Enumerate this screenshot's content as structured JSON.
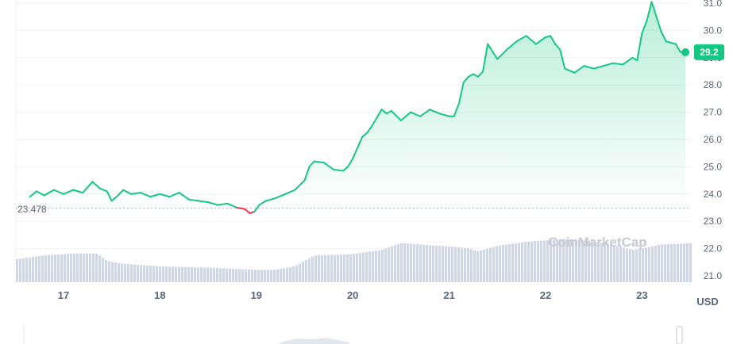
{
  "chart_data": {
    "type": "area",
    "y_axis": {
      "ticks": [
        "31.0",
        "30.0",
        "29.0",
        "28.0",
        "27.0",
        "26.0",
        "25.0",
        "24.0",
        "23.0",
        "22.0",
        "21.0"
      ],
      "ylim": [
        21.0,
        31.0
      ]
    },
    "x_axis": {
      "ticks": [
        "17",
        "18",
        "19",
        "20",
        "21",
        "22",
        "23"
      ],
      "xlim": [
        16.5,
        23.5
      ]
    },
    "unit_label": "USD",
    "reference": {
      "value": 23.478,
      "label": "23.478"
    },
    "current": {
      "value": 29.2,
      "label": "29.2"
    },
    "watermark": "CoinMarketCap",
    "colors": {
      "up": "#16c784",
      "down": "#ea3943",
      "volume": "#cfd6e4",
      "text": "#58667e"
    },
    "price": {
      "x": [
        16.65,
        16.72,
        16.8,
        16.9,
        17.0,
        17.1,
        17.2,
        17.3,
        17.38,
        17.45,
        17.5,
        17.55,
        17.62,
        17.7,
        17.8,
        17.9,
        18.0,
        18.1,
        18.2,
        18.3,
        18.4,
        18.5,
        18.6,
        18.7,
        18.8,
        18.88,
        18.93,
        18.98,
        19.03,
        19.1,
        19.2,
        19.3,
        19.4,
        19.5,
        19.55,
        19.6,
        19.7,
        19.8,
        19.9,
        19.95,
        20.0,
        20.05,
        20.1,
        20.15,
        20.2,
        20.25,
        20.3,
        20.35,
        20.4,
        20.5,
        20.6,
        20.7,
        20.8,
        20.9,
        21.0,
        21.05,
        21.1,
        21.15,
        21.2,
        21.25,
        21.3,
        21.35,
        21.4,
        21.5,
        21.6,
        21.7,
        21.8,
        21.9,
        22.0,
        22.05,
        22.1,
        22.15,
        22.2,
        22.3,
        22.4,
        22.5,
        22.6,
        22.7,
        22.8,
        22.9,
        22.95,
        23.0,
        23.05,
        23.1,
        23.15,
        23.2,
        23.25,
        23.3,
        23.35,
        23.4,
        23.45
      ],
      "y": [
        23.9,
        24.1,
        23.95,
        24.15,
        24.0,
        24.15,
        24.05,
        24.45,
        24.2,
        24.1,
        23.75,
        23.9,
        24.15,
        24.0,
        24.05,
        23.9,
        24.0,
        23.9,
        24.05,
        23.8,
        23.75,
        23.7,
        23.6,
        23.65,
        23.5,
        23.45,
        23.3,
        23.35,
        23.6,
        23.75,
        23.85,
        24.0,
        24.15,
        24.5,
        25.0,
        25.2,
        25.15,
        24.9,
        24.85,
        25.0,
        25.3,
        25.7,
        26.1,
        26.25,
        26.5,
        26.8,
        27.1,
        26.95,
        27.05,
        26.7,
        27.0,
        26.85,
        27.1,
        26.95,
        26.85,
        26.85,
        27.3,
        28.1,
        28.3,
        28.4,
        28.3,
        28.5,
        29.5,
        28.95,
        29.3,
        29.6,
        29.8,
        29.5,
        29.75,
        29.8,
        29.5,
        29.3,
        28.6,
        28.45,
        28.7,
        28.6,
        28.7,
        28.8,
        28.75,
        29.0,
        28.9,
        29.9,
        30.35,
        31.05,
        30.5,
        29.95,
        29.6,
        29.55,
        29.5,
        29.2,
        29.2
      ]
    },
    "volume": {
      "x": [
        16.5,
        16.8,
        17.1,
        17.35,
        17.45,
        17.6,
        18.0,
        18.5,
        18.8,
        19.0,
        19.2,
        19.4,
        19.5,
        19.6,
        19.9,
        20.0,
        20.3,
        20.5,
        20.7,
        20.9,
        21.1,
        21.2,
        21.3,
        21.4,
        21.5,
        21.8,
        22.0,
        22.2,
        22.4,
        22.6,
        22.8,
        22.9,
        23.0,
        23.2,
        23.5
      ],
      "y": [
        21.6,
        21.75,
        21.82,
        21.82,
        21.55,
        21.45,
        21.35,
        21.3,
        21.25,
        21.22,
        21.22,
        21.35,
        21.55,
        21.75,
        21.78,
        21.8,
        21.95,
        22.2,
        22.15,
        22.1,
        22.05,
        22.0,
        21.9,
        22.0,
        22.1,
        22.25,
        22.3,
        22.35,
        22.3,
        22.2,
        22.05,
        21.95,
        22.0,
        22.15,
        22.2
      ]
    }
  }
}
